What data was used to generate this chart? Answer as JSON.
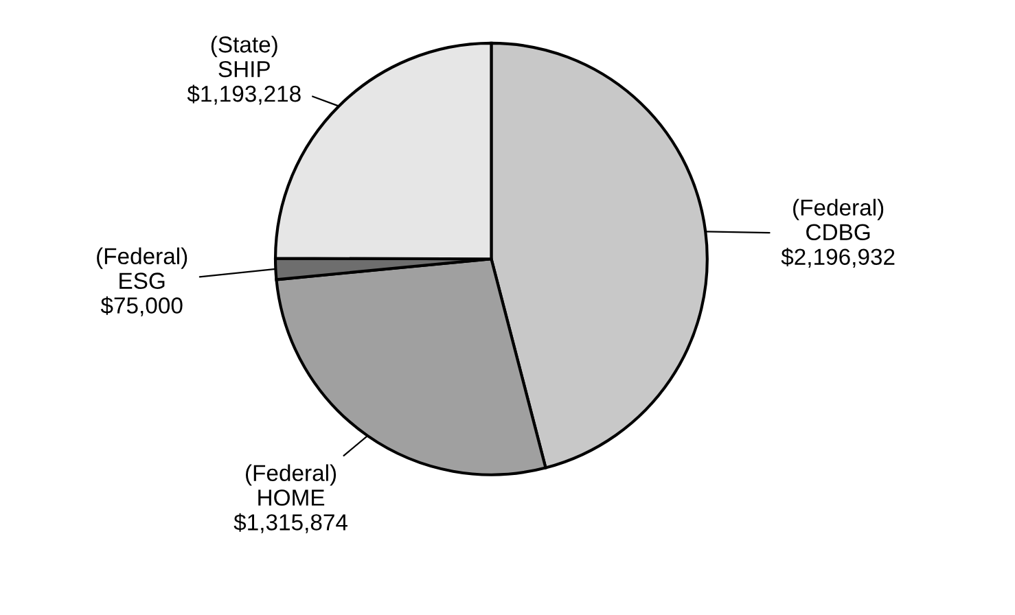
{
  "chart_data": {
    "type": "pie",
    "categories": [
      "(Federal)\nCDBG",
      "(Federal)\nHOME",
      "(Federal)\nESG",
      "(State)\nSHIP"
    ],
    "values": [
      2196932,
      1315874,
      75000,
      1193218
    ],
    "value_labels": [
      "$2,196,932",
      "$1,315,874",
      "$75,000",
      "$1,193,218"
    ],
    "colors": [
      "#c8c8c8",
      "#a0a0a0",
      "#6e6e6e",
      "#e6e6e6"
    ],
    "legend": false
  }
}
